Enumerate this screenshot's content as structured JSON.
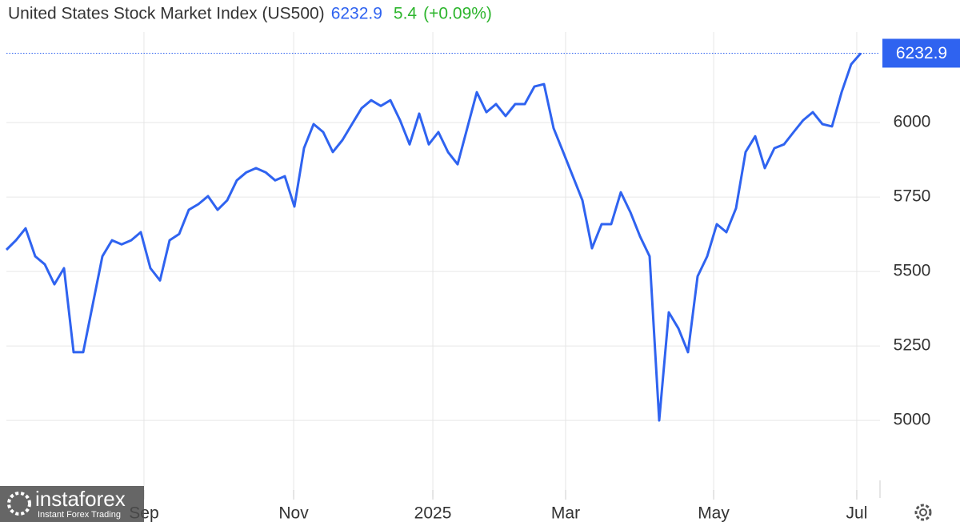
{
  "chart_data": {
    "type": "line",
    "title": "United States Stock Market Index (US500)",
    "last_price": 6232.9,
    "change": 5.4,
    "change_pct": "(+0.09%)",
    "series": [
      {
        "name": "US500",
        "color": "#2f63f0",
        "values": [
          5573,
          5605,
          5645,
          5551,
          5524,
          5457,
          5511,
          5229,
          5229,
          5390,
          5551,
          5605,
          5591,
          5605,
          5632,
          5511,
          5470,
          5605,
          5626,
          5707,
          5726,
          5753,
          5707,
          5739,
          5806,
          5833,
          5847,
          5833,
          5806,
          5820,
          5718,
          5914,
          5995,
          5968,
          5901,
          5941,
          5995,
          6048,
          6075,
          6056,
          6075,
          6008,
          5927,
          6030,
          5927,
          5968,
          5901,
          5860,
          5981,
          6102,
          6035,
          6062,
          6022,
          6062,
          6062,
          6121,
          6129,
          5981,
          5901,
          5820,
          5739,
          5578,
          5659,
          5659,
          5766,
          5699,
          5618,
          5551,
          5000,
          5363,
          5309,
          5229,
          5484,
          5551,
          5659,
          5632,
          5712,
          5901,
          5954,
          5847,
          5914,
          5927,
          5968,
          6008,
          6035,
          5995,
          5987,
          6102,
          6196,
          6232.9
        ]
      }
    ],
    "xlim": [
      0,
      89.5
    ],
    "xticks": [
      {
        "value": 14.33,
        "label": "Sep"
      },
      {
        "value": 29.92,
        "label": "Nov"
      },
      {
        "value": 44.42,
        "label": "2025"
      },
      {
        "value": 58.25,
        "label": "Mar"
      },
      {
        "value": 73.67,
        "label": "May"
      },
      {
        "value": 88.58,
        "label": "Jul"
      }
    ],
    "ylim": [
      4745,
      6304
    ],
    "yticks": [
      5000,
      5250,
      5500,
      5750,
      6000
    ],
    "grid": true
  },
  "watermark": {
    "brand": "instaforex",
    "tagline": "Instant Forex Trading"
  }
}
